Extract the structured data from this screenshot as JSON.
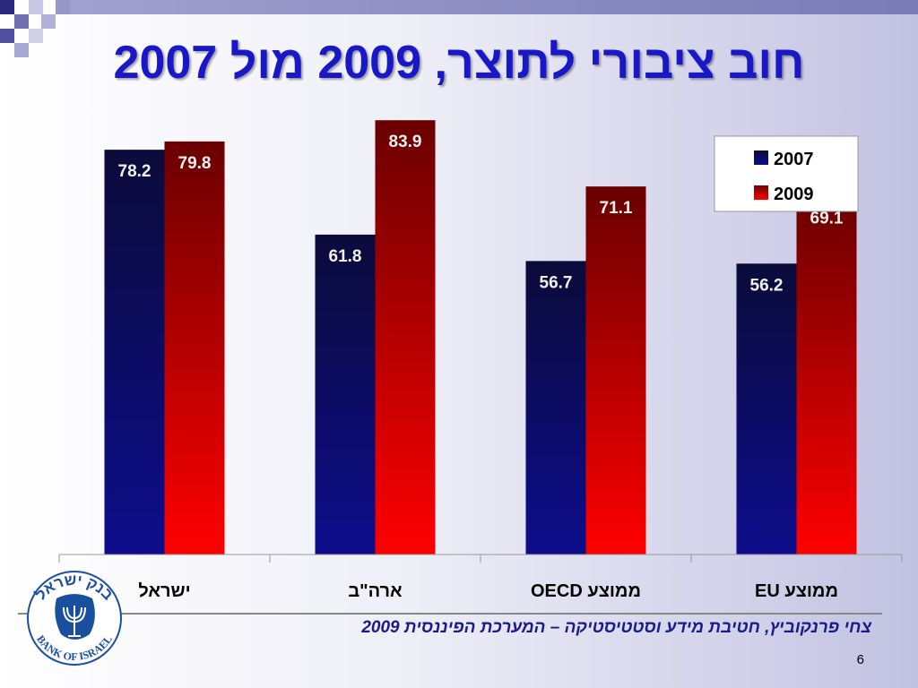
{
  "title": "חוב ציבורי לתוצר, 2009 מול 2007",
  "source": "צחי פרנקוביץ, חטיבת מידע וסטטיסטיקה – המערכת הפיננסית 2009",
  "page_number": "6",
  "logo": {
    "hebrew_text": "בנק ישראל",
    "english_text": "BANK OF ISRAEL"
  },
  "colors": {
    "series_2007": "#0a0a6e",
    "series_2009": "#e00000",
    "title": "#1818c8"
  },
  "chart_data": {
    "type": "bar",
    "title": "חוב ציבורי לתוצר, 2009 מול 2007",
    "categories": [
      "ישראל",
      "ארה\"ב",
      "ממוצע OECD",
      "ממוצע EU"
    ],
    "series": [
      {
        "name": "2007",
        "values": [
          78.2,
          61.8,
          56.7,
          56.2
        ]
      },
      {
        "name": "2009",
        "values": [
          79.8,
          83.9,
          71.1,
          69.1
        ]
      }
    ],
    "xlabel": "",
    "ylabel": "",
    "ylim": [
      0,
      84.8
    ],
    "grid": false,
    "legend_position": "top-right"
  }
}
